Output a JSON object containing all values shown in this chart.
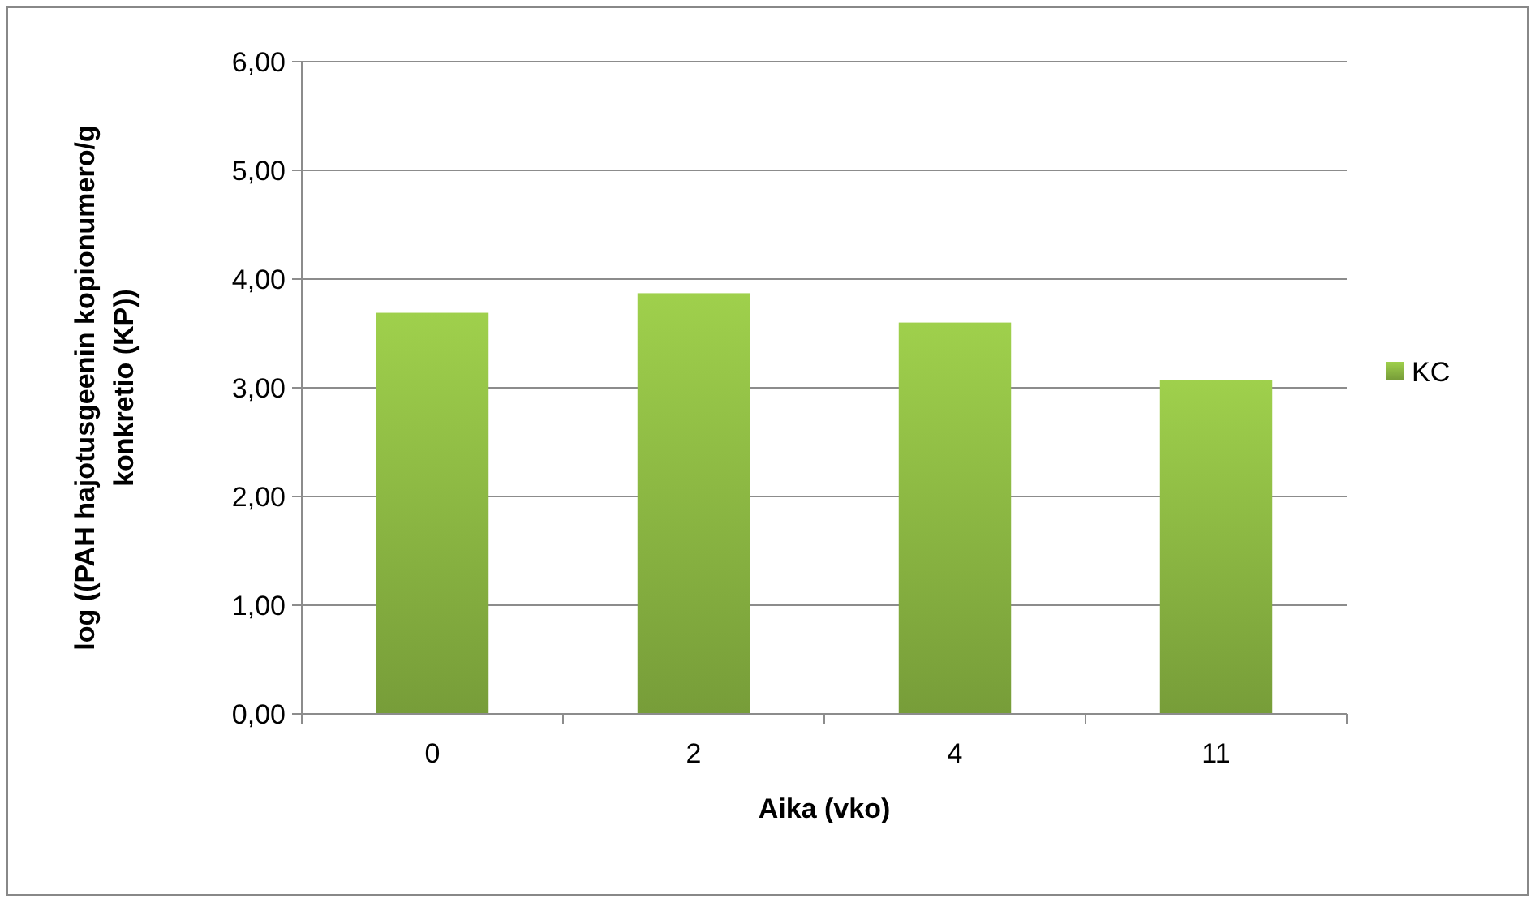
{
  "chart_data": {
    "type": "bar",
    "xlabel": "Aika (vko)",
    "ylabel": "log ((PAH hajotusgeenin kopionumero/g konkretio (KP))",
    "categories": [
      "0",
      "2",
      "4",
      "11"
    ],
    "series": [
      {
        "name": "KC",
        "color": "#8cb843",
        "values": [
          3.69,
          3.87,
          3.6,
          3.07
        ]
      }
    ],
    "ylim": [
      0,
      6
    ],
    "yticks": [
      {
        "value": 0,
        "label": "0,00"
      },
      {
        "value": 1,
        "label": "1,00"
      },
      {
        "value": 2,
        "label": "2,00"
      },
      {
        "value": 3,
        "label": "3,00"
      },
      {
        "value": 4,
        "label": "4,00"
      },
      {
        "value": 5,
        "label": "5,00"
      },
      {
        "value": 6,
        "label": "6,00"
      }
    ],
    "grid": "y",
    "legend": "right"
  }
}
